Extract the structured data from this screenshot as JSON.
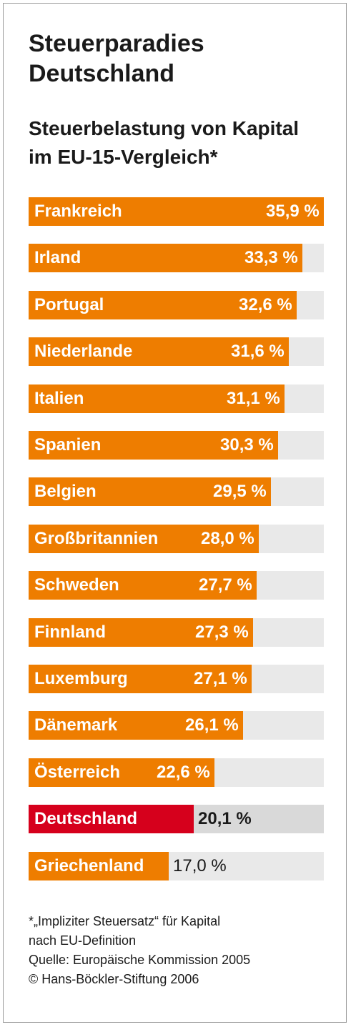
{
  "header": {
    "title_line1": "Steuerparadies",
    "title_line2": "Deutschland",
    "subtitle_line1": "Steuerbelastung von Kapital",
    "subtitle_line2": "im EU-15-Vergleich*"
  },
  "chart_data": {
    "type": "bar",
    "orientation": "horizontal",
    "title": "Steuerparadies Deutschland",
    "subtitle": "Steuerbelastung von Kapital im EU-15-Vergleich*",
    "unit": "%",
    "xlim": [
      0,
      35.9
    ],
    "grid": false,
    "legend": "none",
    "categories": [
      "Frankreich",
      "Irland",
      "Portugal",
      "Niederlande",
      "Italien",
      "Spanien",
      "Belgien",
      "Großbritannien",
      "Schweden",
      "Finnland",
      "Luxemburg",
      "Dänemark",
      "Österreich",
      "Deutschland",
      "Griechenland"
    ],
    "values": [
      35.9,
      33.3,
      32.6,
      31.6,
      31.1,
      30.3,
      29.5,
      28.0,
      27.7,
      27.3,
      27.1,
      26.1,
      22.6,
      20.1,
      17.0
    ],
    "value_labels": [
      "35,9 %",
      "33,3 %",
      "32,6 %",
      "31,6 %",
      "31,1 %",
      "30,3 %",
      "29,5 %",
      "28,0 %",
      "27,7 %",
      "27,3 %",
      "27,1 %",
      "26,1 %",
      "22,6 %",
      "20,1 %",
      "17,0 %"
    ],
    "highlight": "Deutschland",
    "colors": {
      "bar": "#ee7d00",
      "highlight": "#d6001c",
      "track": "#e9e9e9",
      "highlight_track": "#d9d9d9"
    }
  },
  "footnote": {
    "line1": "*„Impliziter Steuersatz“ für Kapital",
    "line2": "nach EU-Definition",
    "line3": "Quelle: Europäische Kommission 2005",
    "line4": "© Hans-Böckler-Stiftung 2006"
  }
}
